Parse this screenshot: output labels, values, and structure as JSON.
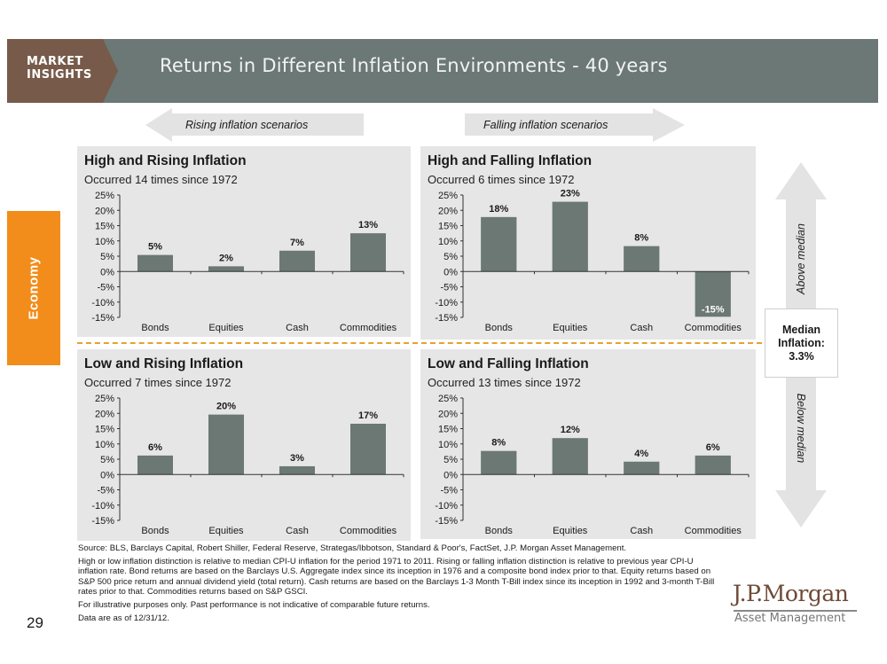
{
  "header": {
    "badge_line1": "MARKET",
    "badge_line2": "INSIGHTS",
    "title": "Returns in Different Inflation Environments - 40 years"
  },
  "scenarios": {
    "rising_label": "Rising inflation scenarios",
    "falling_label": "Falling inflation scenarios"
  },
  "sidebar": {
    "section_label": "Economy"
  },
  "median": {
    "line1": "Median",
    "line2": "Inflation:",
    "value": "3.3%",
    "above_label": "Above median",
    "below_label": "Below median"
  },
  "colors": {
    "bar": "#6b7874",
    "accent_orange": "#f28c1a",
    "banner": "#6b7875",
    "badge": "#775a4a",
    "panel_bg": "#e6e6e6",
    "dashed_line": "#e8a030"
  },
  "chart_data": [
    {
      "type": "bar",
      "title": "High and Rising Inflation",
      "subtitle": "Occurred 14 times since 1972",
      "categories": [
        "Bonds",
        "Equities",
        "Cash",
        "Commodities"
      ],
      "values": [
        5.4,
        1.7,
        6.8,
        12.5
      ],
      "data_labels": [
        "5%",
        "2%",
        "7%",
        "13%"
      ],
      "yticks": [
        "25%",
        "20%",
        "15%",
        "10%",
        "5%",
        "0%",
        "-5%",
        "-10%",
        "-15%"
      ],
      "ylim": [
        -15,
        25
      ],
      "xlabel": "",
      "ylabel": "",
      "grid": false
    },
    {
      "type": "bar",
      "title": "High and Falling Inflation",
      "subtitle": "Occurred 6 times since 1972",
      "categories": [
        "Bonds",
        "Equities",
        "Cash",
        "Commodities"
      ],
      "values": [
        17.8,
        22.8,
        8.3,
        -14.8
      ],
      "data_labels": [
        "18%",
        "23%",
        "8%",
        "-15%"
      ],
      "yticks": [
        "25%",
        "20%",
        "15%",
        "10%",
        "5%",
        "0%",
        "-5%",
        "-10%",
        "-15%"
      ],
      "ylim": [
        -15,
        25
      ],
      "xlabel": "",
      "ylabel": "",
      "grid": false
    },
    {
      "type": "bar",
      "title": "Low and Rising Inflation",
      "subtitle": "Occurred 7 times since 1972",
      "categories": [
        "Bonds",
        "Equities",
        "Cash",
        "Commodities"
      ],
      "values": [
        6.2,
        19.6,
        2.7,
        16.6
      ],
      "data_labels": [
        "6%",
        "20%",
        "3%",
        "17%"
      ],
      "yticks": [
        "25%",
        "20%",
        "15%",
        "10%",
        "5%",
        "0%",
        "-5%",
        "-10%",
        "-15%"
      ],
      "ylim": [
        -15,
        25
      ],
      "xlabel": "",
      "ylabel": "",
      "grid": false
    },
    {
      "type": "bar",
      "title": "Low and Falling Inflation",
      "subtitle": "Occurred 13 times since 1972",
      "categories": [
        "Bonds",
        "Equities",
        "Cash",
        "Commodities"
      ],
      "values": [
        7.7,
        11.9,
        4.2,
        6.2
      ],
      "data_labels": [
        "8%",
        "12%",
        "4%",
        "6%"
      ],
      "yticks": [
        "25%",
        "20%",
        "15%",
        "10%",
        "5%",
        "0%",
        "-5%",
        "-10%",
        "-15%"
      ],
      "ylim": [
        -15,
        25
      ],
      "xlabel": "",
      "ylabel": "",
      "grid": false
    }
  ],
  "footnotes": [
    "Source: BLS, Barclays Capital, Robert Shiller, Federal Reserve, Strategas/Ibbotson, Standard & Poor's, FactSet, J.P. Morgan Asset Management.",
    "High or low inflation distinction is relative to median CPI-U inflation for the period 1971 to 2011.  Rising or falling inflation distinction is relative to previous year CPI-U inflation rate. Bond returns are based on the Barclays U.S. Aggregate index since its inception in 1976 and a composite bond index prior to that. Equity returns based on S&P 500 price return and annual dividend yield (total return). Cash returns are based on the Barclays 1-3 Month T-Bill index since its inception in 1992 and 3-month T-Bill rates prior to that. Commodities returns based on S&P GSCI.",
    "For illustrative purposes only. Past performance is not indicative of comparable future returns.",
    "Data are as of 12/31/12."
  ],
  "page_number": "29",
  "logo": {
    "main": "J.P.Morgan",
    "sub": "Asset Management"
  }
}
